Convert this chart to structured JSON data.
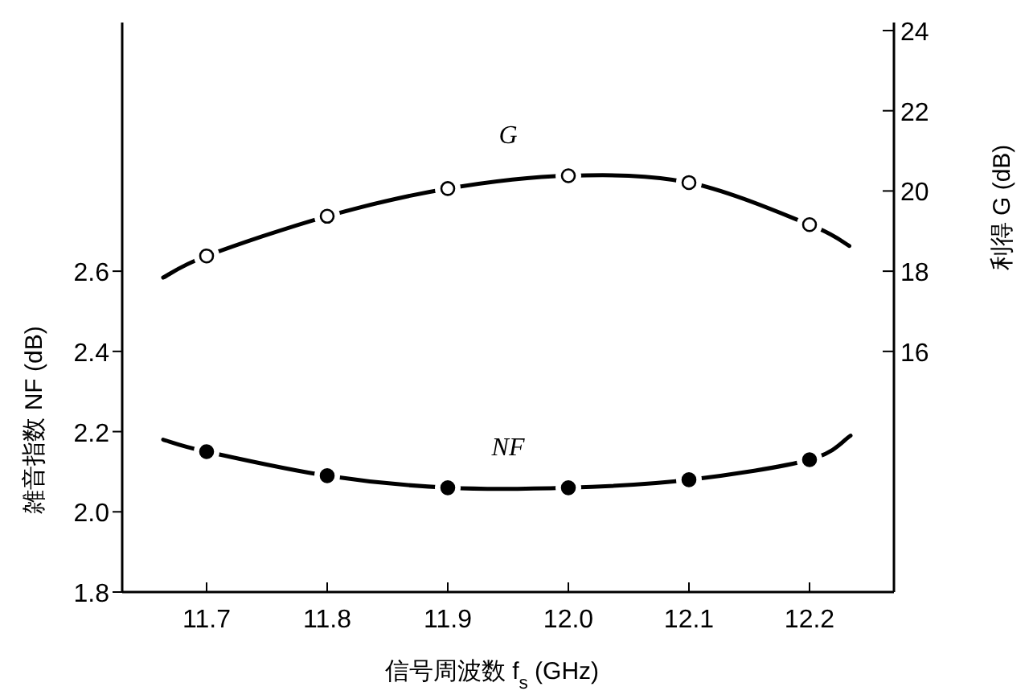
{
  "chart_data": {
    "type": "line",
    "xlabel": "信号周波数 f$_{s}$ (GHz)",
    "ylabel": "雑音指数 NF (dB)",
    "y2label": "利得 G (dB)",
    "xlim": [
      11.63,
      12.27
    ],
    "xticks": [
      11.7,
      11.8,
      11.9,
      {
        "value": 12,
        "label": "12.0"
      },
      12.1,
      12.2
    ],
    "ylim": [
      1.8,
      3.22
    ],
    "yticks": [
      1.8,
      {
        "value": 2,
        "label": "2.0"
      },
      2.2,
      2.4,
      2.6
    ],
    "y2lim": [
      10,
      24.2
    ],
    "y2ticks": [
      16,
      18,
      20,
      22,
      24
    ],
    "series": [
      {
        "axis": "y2",
        "color": "#000000",
        "x": [
          11.664,
          11.7,
          11.8,
          11.9,
          12.0,
          12.1,
          12.2,
          12.233
        ],
        "values": [
          17.84,
          18.38,
          19.37,
          20.06,
          20.38,
          20.21,
          19.16,
          18.63
        ]
      },
      {
        "axis": "y",
        "color": "#000000",
        "x": [
          11.664,
          11.7,
          11.8,
          11.9,
          12.0,
          12.1,
          12.2,
          12.234
        ],
        "values": [
          2.18,
          2.15,
          2.09,
          2.06,
          2.06,
          2.08,
          2.13,
          2.19
        ]
      },
      {
        "name": "G",
        "type": "scatter",
        "axis": "y2",
        "marker": "circle",
        "color": "#000000",
        "x": [
          11.7,
          11.8,
          11.9,
          12.0,
          12.1,
          12.2
        ],
        "values": [
          18.38,
          19.37,
          20.06,
          20.38,
          20.21,
          19.16
        ]
      },
      {
        "name": "NF",
        "type": "scatter",
        "axis": "y",
        "marker": "circle",
        "color": "#000000",
        "x": [
          11.7,
          11.8,
          11.9,
          12.0,
          12.1,
          12.2
        ],
        "values": [
          2.15,
          2.09,
          2.06,
          2.06,
          2.08,
          2.13
        ]
      }
    ]
  }
}
